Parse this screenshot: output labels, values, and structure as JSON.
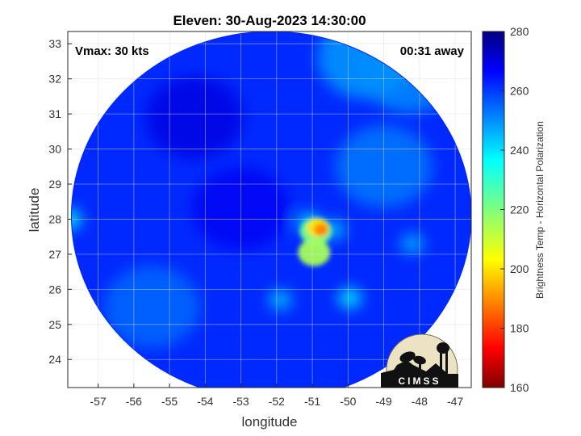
{
  "chart_data": {
    "type": "heatmap",
    "title": "Eleven: 30-Aug-2023 14:30:00",
    "xlabel": "longitude",
    "ylabel": "latitude",
    "xlim": [
      -57.85,
      -46.55
    ],
    "ylim": [
      23.2,
      33.35
    ],
    "x_ticks": [
      -57,
      -56,
      -55,
      -54,
      -53,
      -52,
      -51,
      -50,
      -49,
      -48,
      -47
    ],
    "y_ticks": [
      24,
      25,
      26,
      27,
      28,
      29,
      30,
      31,
      32,
      33
    ],
    "grid": true,
    "annotations": {
      "top_left": "Vmax: 30 kts",
      "top_right": "00:31 away"
    },
    "colorbar": {
      "label": "Brightness Temp - Horizontal Polarization",
      "range": [
        160,
        280
      ],
      "ticks": [
        160,
        180,
        200,
        220,
        240,
        260,
        280
      ],
      "colormap": "jet"
    },
    "swath": {
      "center": [
        -52.15,
        28.1
      ],
      "radius_lon": 5.6,
      "radius_lat": 5.25,
      "background_temp": 262
    },
    "features": [
      {
        "lon": -50.75,
        "lat": 27.7,
        "temp": 188
      },
      {
        "lon": -50.85,
        "lat": 27.75,
        "temp": 200
      },
      {
        "lon": -50.9,
        "lat": 27.65,
        "temp": 222
      },
      {
        "lon": -50.95,
        "lat": 27.05,
        "temp": 215
      },
      {
        "lon": -51.1,
        "lat": 27.9,
        "temp": 240
      },
      {
        "lon": -50.4,
        "lat": 27.7,
        "temp": 244
      },
      {
        "lon": -49.5,
        "lat": 32.6,
        "temp": 248
      },
      {
        "lon": -48.3,
        "lat": 32.2,
        "temp": 250
      },
      {
        "lon": -49.0,
        "lat": 29.5,
        "temp": 252
      },
      {
        "lon": -55.5,
        "lat": 25.5,
        "temp": 254
      },
      {
        "lon": -57.8,
        "lat": 28.0,
        "temp": 236
      },
      {
        "lon": -49.95,
        "lat": 25.75,
        "temp": 238
      },
      {
        "lon": -51.9,
        "lat": 25.7,
        "temp": 244
      },
      {
        "lon": -48.2,
        "lat": 27.3,
        "temp": 246
      },
      {
        "lon": -53.0,
        "lat": 28.3,
        "temp": 268
      },
      {
        "lon": -54.3,
        "lat": 30.9,
        "temp": 270
      }
    ]
  },
  "logo": {
    "text": "CIMSS",
    "colors": {
      "disk": "#ece3c5",
      "silhouette": "#111111"
    }
  },
  "colors": {
    "grid": "#dddddd",
    "axis": "#262626"
  }
}
